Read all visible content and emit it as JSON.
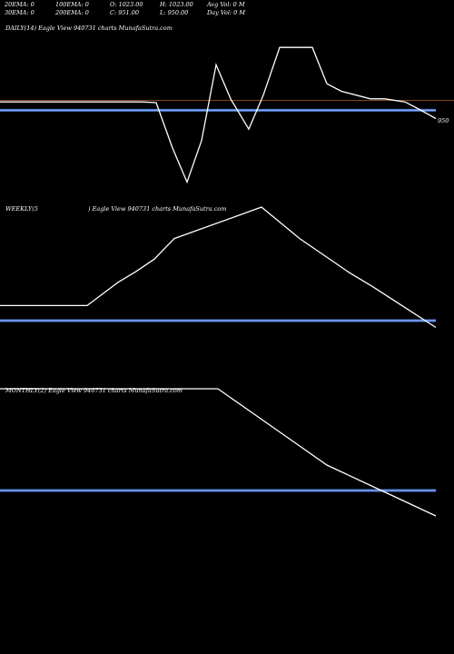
{
  "header": {
    "ema20": "20EMA: 0",
    "ema30": "30EMA: 0",
    "ema100": "100EMA: 0",
    "ema200": "200EMA: 0",
    "open": "O: 1023.00",
    "close": "C: 951.00",
    "high": "H: 1023.00",
    "low": "L: 950.00",
    "avg_vol": "Avg Vol: 0  M",
    "day_vol": "Day Vol: 0  M"
  },
  "panels": {
    "daily": {
      "title": "DAILY(14) Eagle  View  940731 charts MunafaSutra.com"
    },
    "weekly": {
      "title_left": "WEEKLY(5",
      "title_right": ") Eagle  View  940731 charts MunafaSutra.com"
    },
    "monthly": {
      "title": "MONTHLY(2) Eagle  View  940731 charts MunafaSutra.com"
    }
  },
  "colors": {
    "background": "#000000",
    "price_line": "#ffffff",
    "ema_line": "#4a7ad8",
    "ref_line": "#8b4513"
  },
  "chart_data": [
    {
      "type": "line",
      "name": "daily",
      "price_label": "950",
      "ref_value": 950,
      "ema_value": 940,
      "ylim": [
        830,
        1040
      ],
      "values": [
        951,
        951,
        951,
        951,
        951,
        951,
        951,
        951,
        951,
        951,
        951,
        951,
        951,
        951,
        950,
        890,
        845,
        900,
        1000,
        955,
        915,
        960,
        1023,
        1023,
        1023,
        1023,
        975,
        965,
        955,
        955,
        951,
        941,
        929
      ]
    },
    {
      "type": "line",
      "name": "weekly",
      "ema_value": 940,
      "ylim": [
        930,
        1023
      ],
      "values": [
        951,
        951,
        951,
        951,
        951,
        951,
        951,
        968,
        976,
        985,
        1000,
        1023,
        1000,
        975,
        965,
        950,
        935
      ]
    },
    {
      "type": "line",
      "name": "monthly",
      "ema_value": 940,
      "ylim": [
        925,
        1000
      ],
      "values": [
        1000,
        1000,
        1000,
        1000,
        1000,
        1000,
        1000,
        1000,
        985,
        970,
        955,
        940,
        925
      ]
    }
  ]
}
